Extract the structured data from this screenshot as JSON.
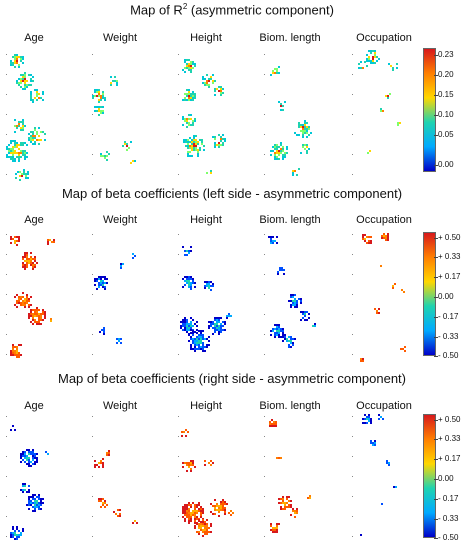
{
  "sections": [
    {
      "title_pre": "Map of R",
      "title_sup": "2",
      "title_post": " (asymmetric component)",
      "columns": [
        "Age",
        "Weight",
        "Height",
        "Biom. length",
        "Occupation"
      ],
      "colorbar": {
        "ticks": [
          "0.23",
          "0.20",
          "0.15",
          "0.10",
          "0.05",
          "0.00"
        ],
        "colors": [
          "#d7191c",
          "#ff7f00",
          "#ffd700",
          "#1fd3b0",
          "#00aaff",
          "#0000c8"
        ]
      }
    },
    {
      "title": "Map of beta coefficients (left side - asymmetric component)",
      "columns": [
        "Age",
        "Weight",
        "Height",
        "Biom. length",
        "Occupation"
      ],
      "colorbar": {
        "ticks": [
          "+ 0.50",
          "+ 0.33",
          "+ 0.17",
          "0.00",
          "- 0.17",
          "- 0.33",
          "- 0.50"
        ],
        "colors": [
          "#d7191c",
          "#ff7f00",
          "#ffd700",
          "#1fd3b0",
          "#00aaff",
          "#0000c8"
        ]
      }
    },
    {
      "title": "Map of beta coefficients (right side - asymmetric component)",
      "columns": [
        "Age",
        "Weight",
        "Height",
        "Biom. length",
        "Occupation"
      ],
      "colorbar": {
        "ticks": [
          "+ 0.50",
          "+ 0.33",
          "+ 0.17",
          "0.00",
          "- 0.17",
          "- 0.33",
          "- 0.50"
        ],
        "colors": [
          "#d7191c",
          "#ff7f00",
          "#ffd700",
          "#1fd3b0",
          "#00aaff",
          "#0000c8"
        ]
      }
    }
  ]
}
